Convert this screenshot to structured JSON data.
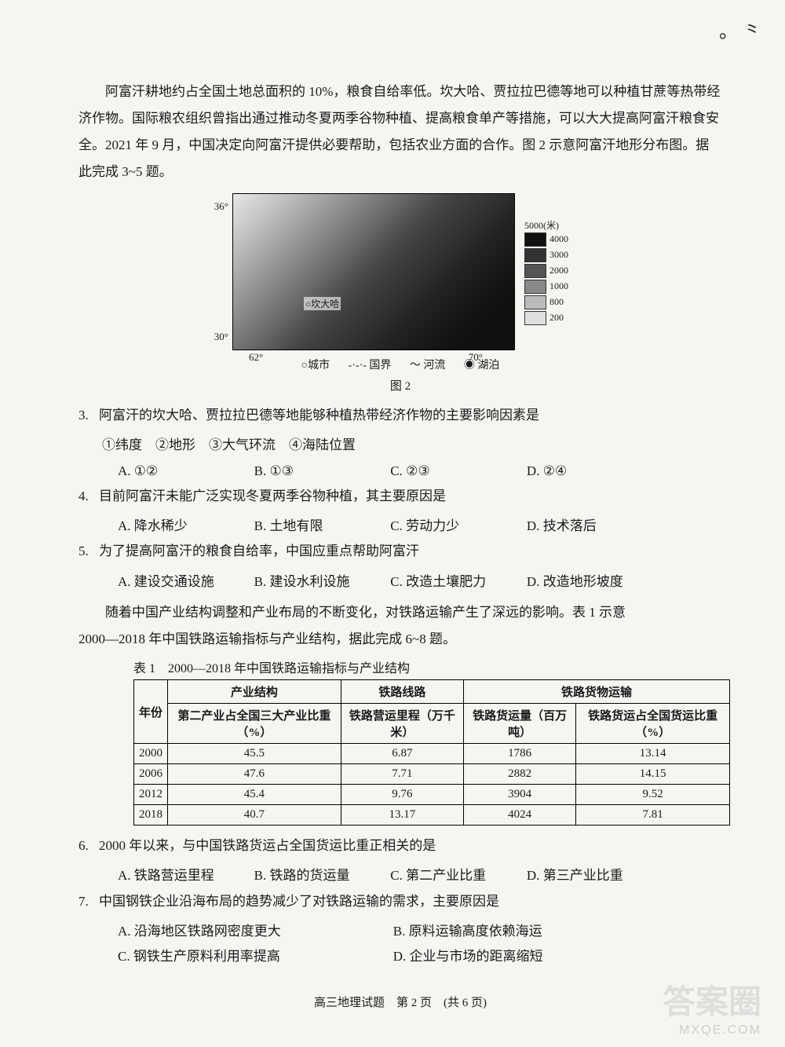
{
  "passage1": "阿富汗耕地约占全国土地总面积的 10%，粮食自给率低。坎大哈、贾拉拉巴德等地可以种植甘蔗等热带经济作物。国际粮农组织曾指出通过推动冬夏两季谷物种植、提高粮食单产等措施，可以大大提高阿富汗粮食安全。2021 年 9 月，中国决定向阿富汗提供必要帮助，包括农业方面的合作。图 2 示意阿富汗地形分布图。据此完成 3~5 题。",
  "map": {
    "lat_top": "36°",
    "lat_bottom": "30°",
    "lon_left": "62°",
    "lon_right": "70°",
    "elevation_unit": "5000(米)",
    "scale_values": [
      "4000",
      "3000",
      "2000",
      "1000",
      "800",
      "200"
    ],
    "scale_colors": [
      "#111111",
      "#333333",
      "#555555",
      "#888888",
      "#bbbbbb",
      "#e0e0e0"
    ],
    "city_label": "○坎大哈",
    "legend": {
      "city": "○城市",
      "border": "-·-·- 国界",
      "river": "～ 河流",
      "lake": "◉ 湖泊"
    },
    "caption": "图 2"
  },
  "q3": {
    "num": "3.",
    "stem": "阿富汗的坎大哈、贾拉拉巴德等地能够种植热带经济作物的主要影响因素是",
    "sub": "①纬度　②地形　③大气环流　④海陆位置",
    "A": "A. ①②",
    "B": "B. ①③",
    "C": "C. ②③",
    "D": "D. ②④"
  },
  "q4": {
    "num": "4.",
    "stem": "目前阿富汗未能广泛实现冬夏两季谷物种植，其主要原因是",
    "A": "A. 降水稀少",
    "B": "B. 土地有限",
    "C": "C. 劳动力少",
    "D": "D. 技术落后"
  },
  "q5": {
    "num": "5.",
    "stem": "为了提高阿富汗的粮食自给率，中国应重点帮助阿富汗",
    "A": "A. 建设交通设施",
    "B": "B. 建设水利设施",
    "C": "C. 改造土壤肥力",
    "D": "D. 改造地形坡度"
  },
  "passage2": "随着中国产业结构调整和产业布局的不断变化，对铁路运输产生了深远的影响。表 1 示意",
  "passage2b": "2000—2018 年中国铁路运输指标与产业结构，据此完成 6~8 题。",
  "table": {
    "caption": "表 1　2000—2018 年中国铁路运输指标与产业结构",
    "head1": {
      "industry": "产业结构",
      "line": "铁路线路",
      "freight": "铁路货物运输"
    },
    "head2": {
      "year": "年份",
      "c1": "第二产业占全国三大产业比重（%）",
      "c2": "铁路营运里程（万千米）",
      "c3": "铁路货运量（百万吨）",
      "c4": "铁路货运占全国货运比重（%）"
    },
    "rows": [
      {
        "year": "2000",
        "c1": "45.5",
        "c2": "6.87",
        "c3": "1786",
        "c4": "13.14"
      },
      {
        "year": "2006",
        "c1": "47.6",
        "c2": "7.71",
        "c3": "2882",
        "c4": "14.15"
      },
      {
        "year": "2012",
        "c1": "45.4",
        "c2": "9.76",
        "c3": "3904",
        "c4": "9.52"
      },
      {
        "year": "2018",
        "c1": "40.7",
        "c2": "13.17",
        "c3": "4024",
        "c4": "7.81"
      }
    ]
  },
  "q6": {
    "num": "6.",
    "stem": "2000 年以来，与中国铁路货运占全国货运比重正相关的是",
    "A": "A. 铁路营运里程",
    "B": "B. 铁路的货运量",
    "C": "C. 第二产业比重",
    "D": "D. 第三产业比重"
  },
  "q7": {
    "num": "7.",
    "stem": "中国钢铁企业沿海布局的趋势减少了对铁路运输的需求，主要原因是",
    "A": "A. 沿海地区铁路网密度更大",
    "B": "B. 原料运输高度依赖海运",
    "C": "C. 钢铁生产原料利用率提高",
    "D": "D. 企业与市场的距离缩短"
  },
  "footer": "高三地理试题　第 2 页　(共 6 页)",
  "corner": "。  ⺀",
  "wm1": "答案圈",
  "wm2": "MXQE.COM"
}
